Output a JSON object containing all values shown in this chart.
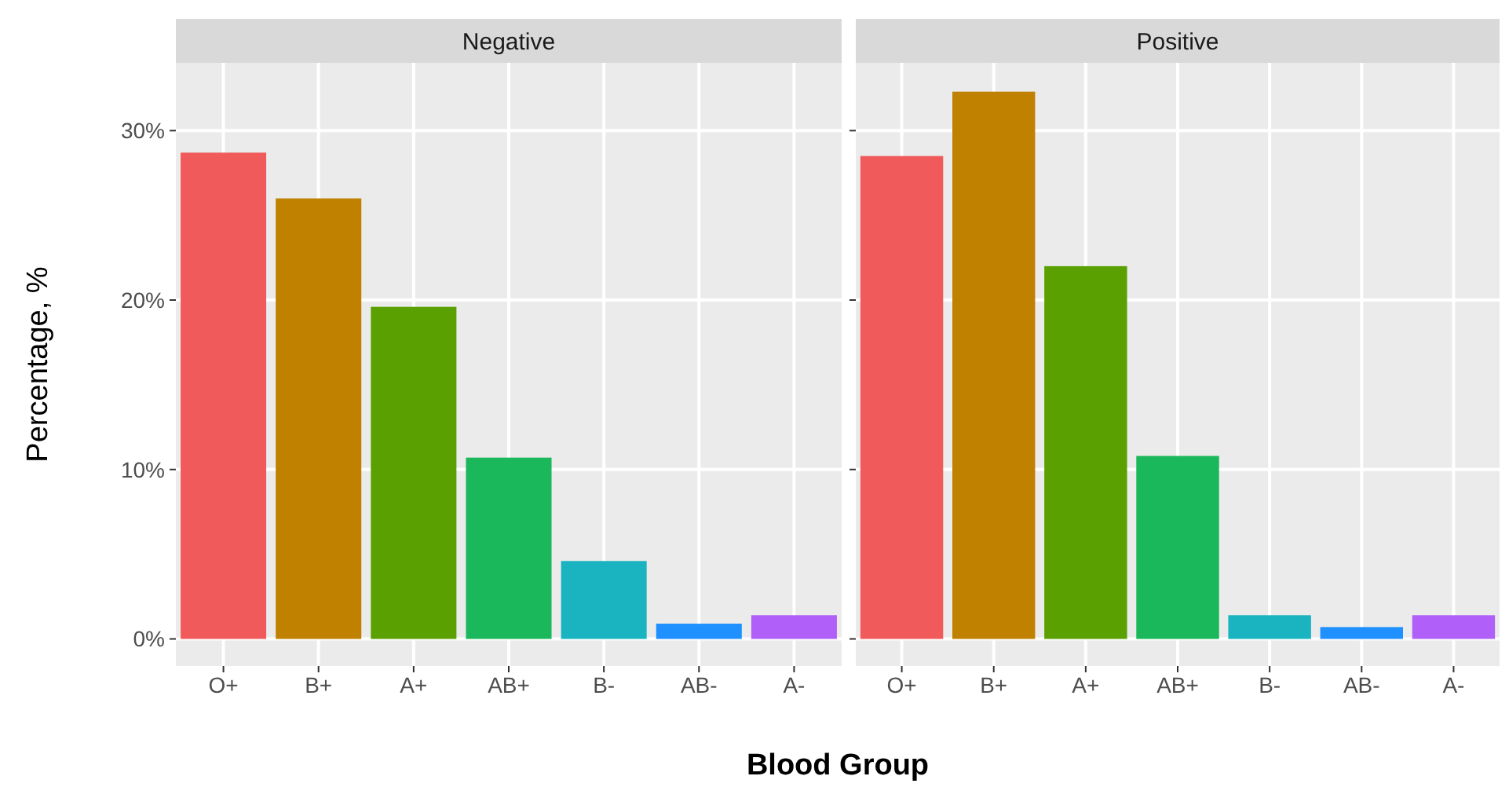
{
  "chart_data": [
    {
      "type": "bar",
      "title": "Negative",
      "ylabel": "Percentage, %",
      "xlabel": "Blood Group",
      "categories": [
        "O+",
        "B+",
        "A+",
        "AB+",
        "B-",
        "AB-",
        "A-"
      ],
      "values": [
        28.7,
        26.0,
        19.6,
        10.7,
        4.6,
        0.9,
        1.4
      ],
      "colors": [
        "#f05a5a",
        "#c08000",
        "#5aa000",
        "#1ab85a",
        "#1ab4c0",
        "#1e90ff",
        "#b060f8"
      ],
      "ylim": [
        -1.6,
        34
      ],
      "yticks": [
        {
          "value": 0,
          "label": "0%"
        },
        {
          "value": 10,
          "label": "10%"
        },
        {
          "value": 20,
          "label": "20%"
        },
        {
          "value": 30,
          "label": "30%"
        }
      ],
      "grid": true
    },
    {
      "type": "bar",
      "title": "Positive",
      "categories": [
        "O+",
        "B+",
        "A+",
        "AB+",
        "B-",
        "AB-",
        "A-"
      ],
      "values": [
        28.5,
        32.3,
        22.0,
        10.8,
        1.4,
        0.7,
        1.4
      ],
      "colors": [
        "#f05a5a",
        "#c08000",
        "#5aa000",
        "#1ab85a",
        "#1ab4c0",
        "#1e90ff",
        "#b060f8"
      ],
      "ylim": [
        -1.6,
        34
      ],
      "yticks": [
        {
          "value": 0,
          "label": null
        },
        {
          "value": 10,
          "label": null
        },
        {
          "value": 20,
          "label": null
        },
        {
          "value": 30,
          "label": null
        }
      ],
      "grid": true,
      "tick_labels": "x"
    }
  ]
}
